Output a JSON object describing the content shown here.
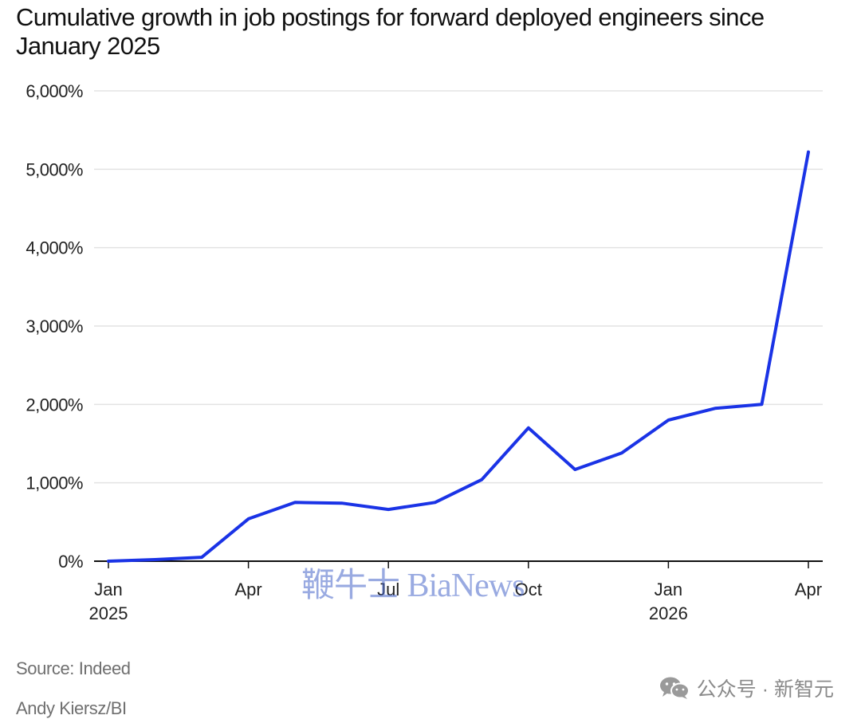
{
  "title": "Cumulative growth in job postings for forward deployed engineers since January 2025",
  "source": "Source: Indeed",
  "credit": "Andy Kiersz/BI",
  "watermark": "鞭牛士 BiaNews",
  "wechat_label": "公众号 · 新智元",
  "colors": {
    "line": "#1a33e6",
    "grid": "#e3e3e3",
    "axis": "#111111"
  },
  "chart_data": {
    "type": "line",
    "title": "Cumulative growth in job postings for forward deployed engineers since January 2025",
    "ylim": [
      0,
      6000
    ],
    "y_ticks": [
      0,
      1000,
      2000,
      3000,
      4000,
      5000,
      6000
    ],
    "y_tick_labels": [
      "0%",
      "1,000%",
      "2,000%",
      "3,000%",
      "4,000%",
      "5,000%",
      "6,000%"
    ],
    "x_ticks": [
      {
        "date": "2025-01",
        "line1": "Jan",
        "line2": "2025"
      },
      {
        "date": "2025-04",
        "line1": "Apr",
        "line2": ""
      },
      {
        "date": "2025-07",
        "line1": "Jul",
        "line2": ""
      },
      {
        "date": "2025-10",
        "line1": "Oct",
        "line2": ""
      },
      {
        "date": "2026-01",
        "line1": "Jan",
        "line2": "2026"
      },
      {
        "date": "2026-04",
        "line1": "Apr",
        "line2": ""
      }
    ],
    "grid": true,
    "series": [
      {
        "x": [
          "2025-01",
          "2025-02",
          "2025-03",
          "2025-04",
          "2025-05",
          "2025-06",
          "2025-07",
          "2025-08",
          "2025-09",
          "2025-10",
          "2025-11",
          "2025-12",
          "2026-01",
          "2026-02",
          "2026-03",
          "2026-04"
        ],
        "values": [
          0,
          20,
          50,
          540,
          750,
          740,
          660,
          750,
          1040,
          1700,
          1170,
          1380,
          1800,
          1950,
          2000,
          5220
        ]
      }
    ]
  }
}
